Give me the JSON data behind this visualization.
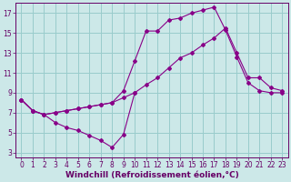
{
  "xlabel": "Windchill (Refroidissement éolien,°C)",
  "bg_color": "#cce8e8",
  "grid_color": "#99cccc",
  "line_color": "#880088",
  "xlim": [
    -0.5,
    23.5
  ],
  "ylim": [
    2.5,
    18
  ],
  "xticks": [
    0,
    1,
    2,
    3,
    4,
    5,
    6,
    7,
    8,
    9,
    10,
    11,
    12,
    13,
    14,
    15,
    16,
    17,
    18,
    19,
    20,
    21,
    22,
    23
  ],
  "yticks": [
    3,
    5,
    7,
    9,
    11,
    13,
    15,
    17
  ],
  "line1_x": [
    0,
    1,
    2,
    3,
    4,
    5,
    6,
    7,
    8,
    9,
    10
  ],
  "line1_y": [
    8.3,
    7.2,
    6.8,
    6.0,
    5.5,
    5.2,
    4.7,
    4.2,
    3.5,
    4.8,
    9.0
  ],
  "line2_x": [
    0,
    1,
    2,
    3,
    4,
    5,
    6,
    7,
    8,
    9,
    10,
    11,
    12,
    13,
    14,
    15,
    16,
    17,
    18,
    19,
    20,
    21,
    22,
    23
  ],
  "line2_y": [
    8.3,
    7.2,
    6.8,
    7.0,
    7.2,
    7.4,
    7.6,
    7.8,
    8.0,
    9.2,
    12.2,
    15.2,
    15.2,
    16.3,
    16.5,
    17.0,
    17.3,
    17.6,
    15.3,
    12.6,
    10.0,
    9.2,
    9.0,
    9.0
  ],
  "line3_x": [
    0,
    1,
    2,
    3,
    4,
    5,
    6,
    7,
    8,
    9,
    10,
    11,
    12,
    13,
    14,
    15,
    16,
    17,
    18,
    19,
    20,
    21,
    22,
    23
  ],
  "line3_y": [
    8.3,
    7.2,
    6.8,
    7.0,
    7.2,
    7.4,
    7.6,
    7.8,
    8.0,
    8.5,
    9.0,
    9.8,
    10.5,
    11.5,
    12.5,
    13.0,
    13.8,
    14.5,
    15.5,
    13.0,
    10.5,
    10.5,
    9.5,
    9.2
  ],
  "axis_color": "#660066",
  "tick_color": "#660066",
  "xlabel_color": "#660066",
  "fontsize_ticks": 5.5,
  "fontsize_xlabel": 6.5
}
